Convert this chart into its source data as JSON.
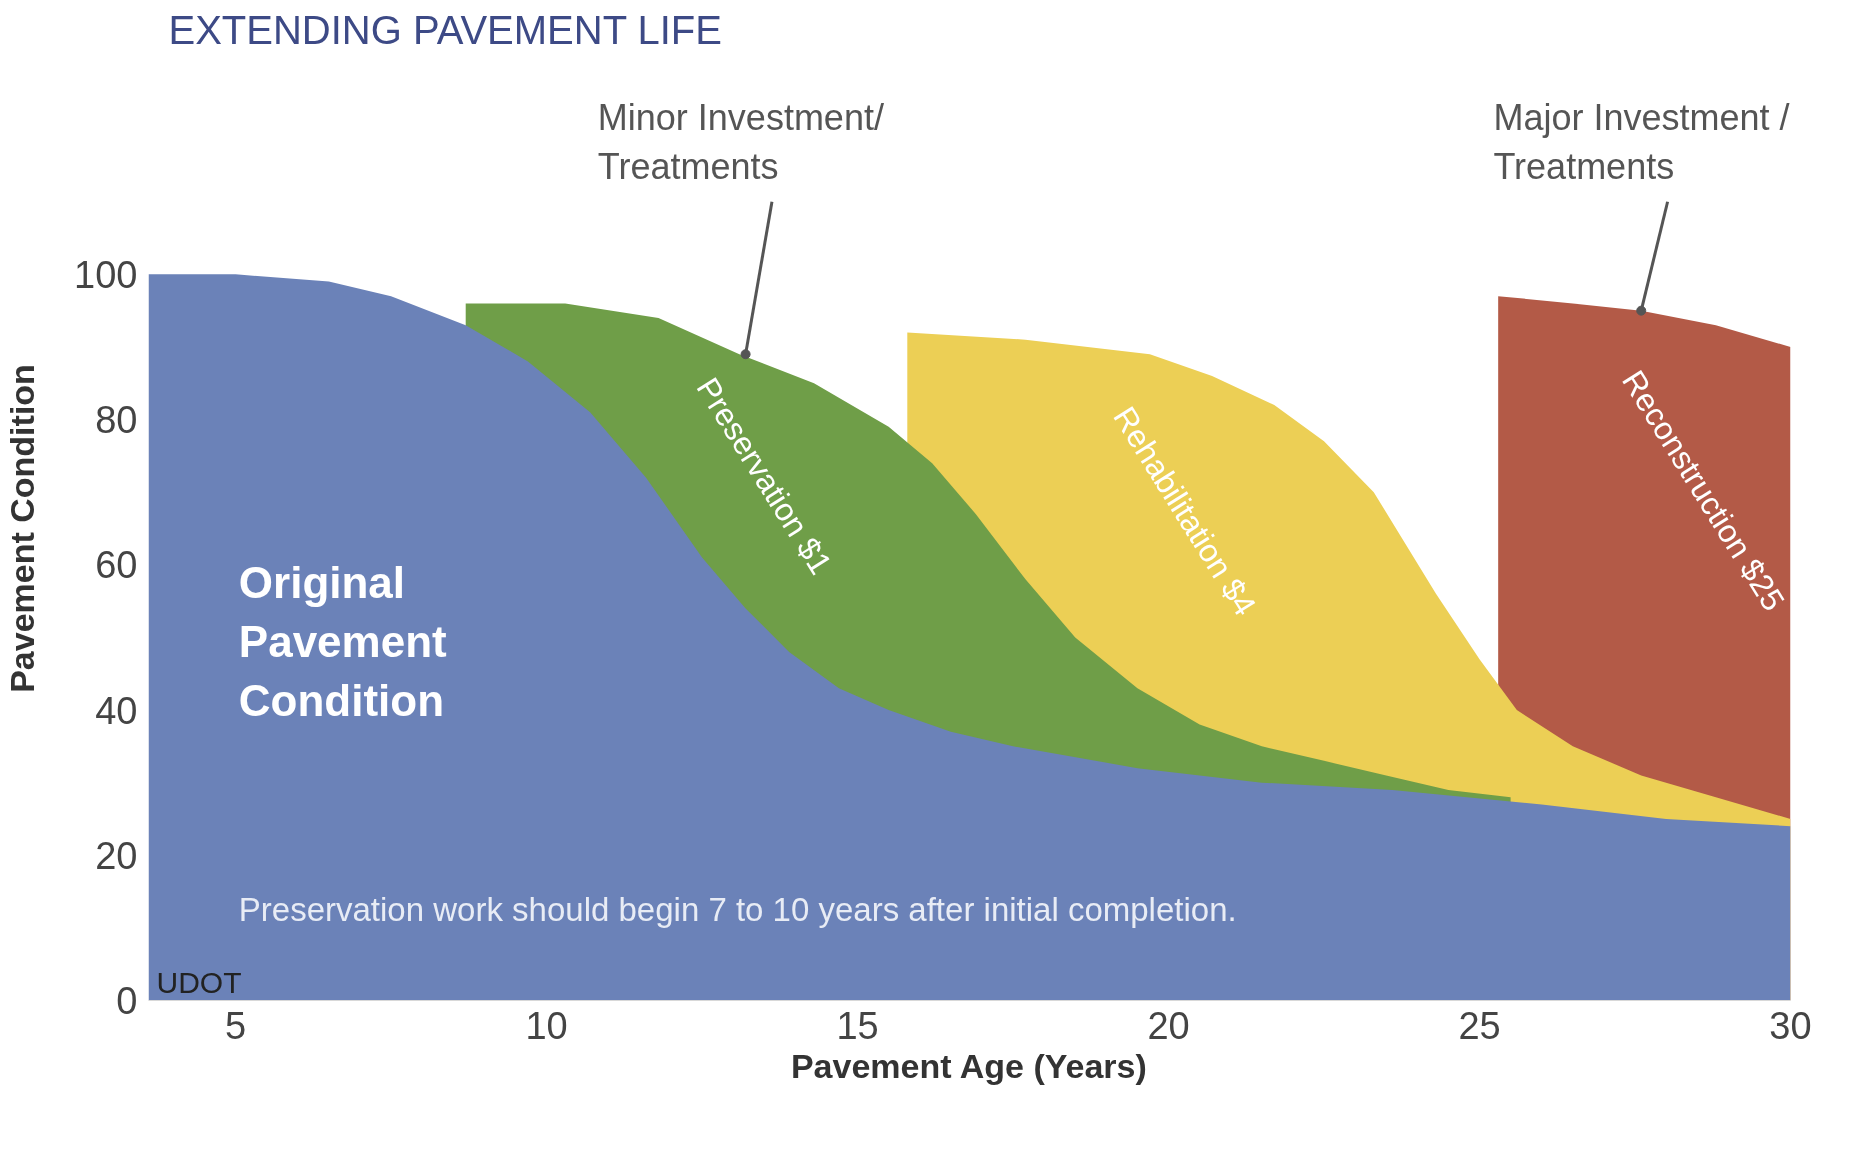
{
  "chart_data": {
    "type": "area",
    "title": "EXTENDING PAVEMENT LIFE",
    "xlabel": "Pavement Age (Years)",
    "ylabel": "Pavement Condition",
    "xlim": [
      3.6,
      30
    ],
    "ylim": [
      0,
      100
    ],
    "xticks": [
      5,
      10,
      15,
      20,
      25,
      30
    ],
    "yticks": [
      0,
      20,
      40,
      60,
      80,
      100
    ],
    "grid": false,
    "series": [
      {
        "name": "Original Pavement Condition",
        "color": "#6b82b8",
        "x": [
          3.6,
          5,
          6.5,
          7.5,
          8.7,
          9.7,
          10.7,
          11.6,
          12.5,
          13.2,
          13.9,
          14.7,
          15.5,
          16.5,
          17.5,
          19.5,
          21.5,
          23.6,
          26,
          28,
          30
        ],
        "values": [
          100,
          100,
          99,
          97,
          93,
          88,
          81,
          72,
          61,
          54,
          48,
          43,
          40,
          37,
          35,
          32,
          30,
          29,
          27,
          25,
          24
        ]
      },
      {
        "name": "Preservation $1",
        "color": "#6f9e48",
        "x": [
          8.7,
          10.3,
          11.8,
          13.1,
          14.3,
          15.5,
          16.2,
          16.9,
          17.7,
          18.5,
          19.5,
          20.5,
          21.5,
          22.5,
          23.5,
          24.5,
          25.5
        ],
        "values": [
          96,
          96,
          94,
          89,
          85,
          79,
          74,
          67,
          58,
          50,
          43,
          38,
          35,
          33,
          31,
          29,
          28
        ]
      },
      {
        "name": "Rehabilitation $4",
        "color": "#eccf55",
        "x": [
          15.8,
          17.7,
          19.7,
          20.7,
          21.7,
          22.5,
          23.3,
          23.8,
          24.3,
          25,
          25.6,
          26.5,
          27.6,
          28.8,
          30
        ],
        "values": [
          92,
          91,
          89,
          86,
          82,
          77,
          70,
          63,
          56,
          47,
          40,
          35,
          31,
          28,
          25
        ]
      },
      {
        "name": "Reconstruction $25",
        "color": "#b35a47",
        "x": [
          25.3,
          26.5,
          27.6,
          28.8,
          30
        ],
        "values": [
          97,
          96,
          95,
          93,
          90
        ]
      }
    ],
    "annotations": [
      {
        "text": "Minor Investment/\nTreatments",
        "x": 13.2,
        "y": 89
      },
      {
        "text": "Major Investment /\nTreatments",
        "x": 27.6,
        "y": 95
      },
      "Preservation work should begin 7 to 10 years after initial completion.",
      "UDOT"
    ]
  }
}
